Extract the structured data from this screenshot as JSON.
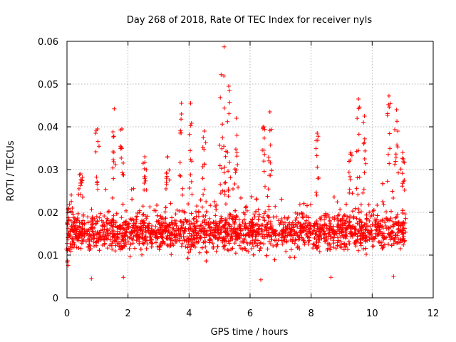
{
  "chart_data": {
    "type": "scatter",
    "title": "Day 268 of 2018, Rate Of TEC Index for receiver nyls",
    "xlabel": "GPS time / hours",
    "ylabel": "ROTI / TECUs",
    "xlim": [
      0,
      12
    ],
    "ylim": [
      0,
      0.06
    ],
    "xticks": [
      0,
      2,
      4,
      6,
      8,
      10,
      12
    ],
    "yticks": [
      0,
      0.01,
      0.02,
      0.03,
      0.04,
      0.05,
      0.06
    ],
    "xtick_labels": [
      "0",
      "2",
      "4",
      "6",
      "8",
      "10",
      "12"
    ],
    "ytick_labels": [
      "0",
      "0.01",
      "0.02",
      "0.03",
      "0.04",
      "0.05",
      "0.06"
    ],
    "grid": true,
    "marker": "+",
    "color": "#ff0000",
    "series": [
      {
        "name": "ROTI",
        "x_range": [
          0,
          11.1
        ],
        "typical_range": [
          0.005,
          0.028
        ],
        "peaks": [
          {
            "x": 0.04,
            "y": 0.0076
          },
          {
            "x": 0.45,
            "y": 0.029
          },
          {
            "x": 1.0,
            "y": 0.0395
          },
          {
            "x": 1.55,
            "y": 0.0442
          },
          {
            "x": 1.8,
            "y": 0.0395
          },
          {
            "x": 2.55,
            "y": 0.033
          },
          {
            "x": 3.3,
            "y": 0.033
          },
          {
            "x": 3.75,
            "y": 0.0455
          },
          {
            "x": 4.05,
            "y": 0.0455
          },
          {
            "x": 4.5,
            "y": 0.039
          },
          {
            "x": 5.05,
            "y": 0.0522
          },
          {
            "x": 5.15,
            "y": 0.0587
          },
          {
            "x": 5.3,
            "y": 0.0495
          },
          {
            "x": 5.55,
            "y": 0.042
          },
          {
            "x": 6.45,
            "y": 0.04
          },
          {
            "x": 6.65,
            "y": 0.0435
          },
          {
            "x": 8.2,
            "y": 0.0385
          },
          {
            "x": 9.3,
            "y": 0.034
          },
          {
            "x": 9.55,
            "y": 0.0465
          },
          {
            "x": 9.75,
            "y": 0.0425
          },
          {
            "x": 10.55,
            "y": 0.0472
          },
          {
            "x": 10.8,
            "y": 0.044
          },
          {
            "x": 11.0,
            "y": 0.034
          }
        ],
        "low_values": [
          {
            "x": 0.8,
            "y": 0.0045
          },
          {
            "x": 1.85,
            "y": 0.0048
          },
          {
            "x": 6.35,
            "y": 0.0042
          },
          {
            "x": 8.65,
            "y": 0.0048
          },
          {
            "x": 10.7,
            "y": 0.005
          }
        ]
      }
    ]
  }
}
